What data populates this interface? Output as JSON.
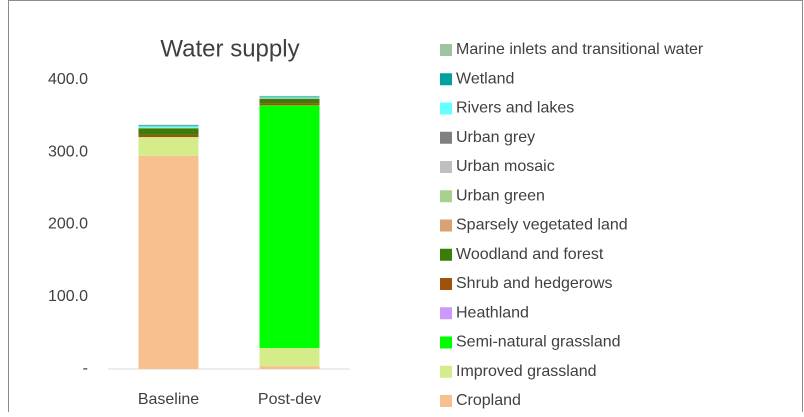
{
  "chart_data": {
    "type": "stacked_bar",
    "title": "Water supply",
    "categories": [
      "Baseline",
      "Post-dev"
    ],
    "series": [
      {
        "name": "Cropland",
        "color": "#f8c08f",
        "values": [
          295,
          4
        ]
      },
      {
        "name": "Improved grassland",
        "color": "#d4ed8a",
        "values": [
          26,
          25
        ]
      },
      {
        "name": "Semi-natural grassland",
        "color": "#00ff00",
        "values": [
          0,
          336
        ]
      },
      {
        "name": "Heathland",
        "color": "#cc99ff",
        "values": [
          0,
          0
        ]
      },
      {
        "name": "Shrub and hedgerows",
        "color": "#a0520a",
        "values": [
          3,
          3
        ]
      },
      {
        "name": "Woodland and forest",
        "color": "#3a7d0a",
        "values": [
          9,
          6
        ]
      },
      {
        "name": "Sparsely vegetated land",
        "color": "#d9a273",
        "values": [
          0,
          0
        ]
      },
      {
        "name": "Urban green",
        "color": "#a9d18e",
        "values": [
          1,
          1
        ]
      },
      {
        "name": "Urban mosaic",
        "color": "#bfbfbf",
        "values": [
          0,
          0
        ]
      },
      {
        "name": "Urban grey",
        "color": "#808080",
        "values": [
          0,
          0
        ]
      },
      {
        "name": "Rivers and lakes",
        "color": "#66ffff",
        "values": [
          2,
          1
        ]
      },
      {
        "name": "Wetland",
        "color": "#00a0a0",
        "values": [
          1,
          1
        ]
      },
      {
        "name": "Marine inlets and transitional water",
        "color": "#9dc3a0",
        "values": [
          1,
          1
        ]
      }
    ],
    "ylim": [
      0,
      400
    ],
    "yticks": [
      {
        "value": 0,
        "label": "-"
      },
      {
        "value": 100,
        "label": "100.0"
      },
      {
        "value": 200,
        "label": "200.0"
      },
      {
        "value": 300,
        "label": "300.0"
      },
      {
        "value": 400,
        "label": "400.0"
      }
    ],
    "grid": false,
    "legend": "right"
  }
}
